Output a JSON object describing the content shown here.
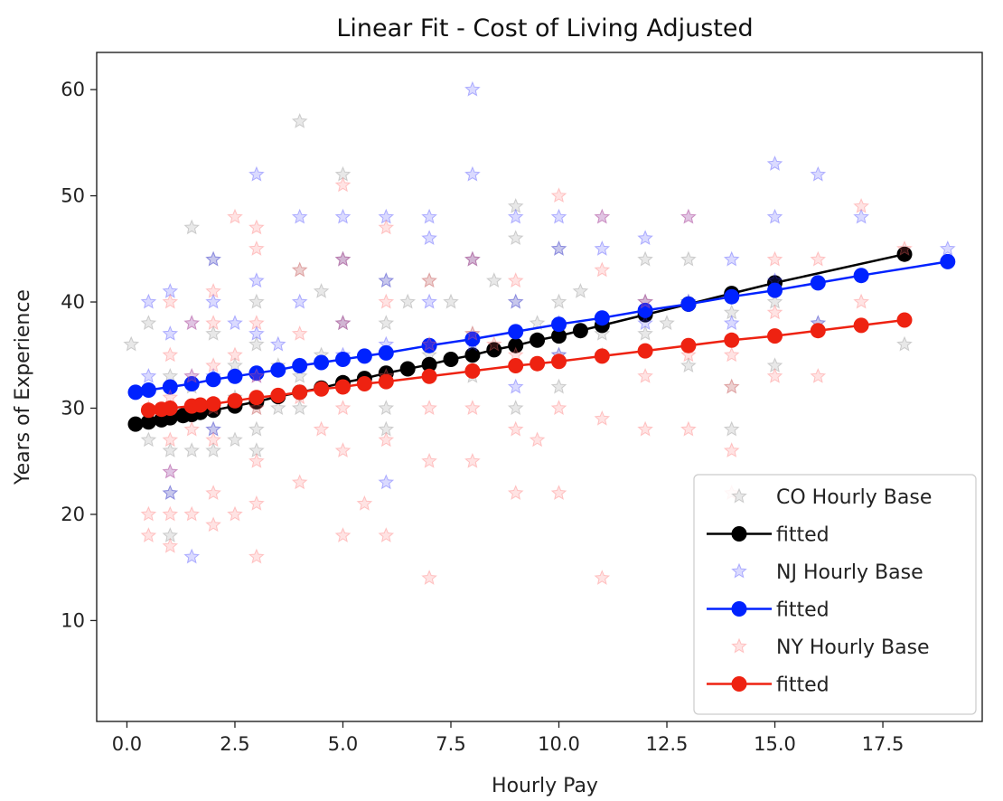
{
  "chart_data": {
    "type": "scatter",
    "title": "Linear Fit - Cost of Living Adjusted",
    "xlabel": "Hourly Pay",
    "ylabel": "Years of Experience",
    "xlim": [
      -0.7,
      19.8
    ],
    "ylim": [
      0.5,
      63.5
    ],
    "xticks": [
      "0.0",
      "2.5",
      "5.0",
      "7.5",
      "10.0",
      "12.5",
      "15.0",
      "17.5"
    ],
    "xtick_values": [
      0,
      2.5,
      5,
      7.5,
      10,
      12.5,
      15,
      17.5
    ],
    "yticks": [
      "10",
      "20",
      "30",
      "40",
      "50",
      "60"
    ],
    "ytick_values": [
      10,
      20,
      30,
      40,
      50,
      60
    ],
    "grid": false,
    "legend_position": "lower-right",
    "series": [
      {
        "name": "CO Hourly Base",
        "kind": "scatter",
        "marker": "star",
        "color": "#808080",
        "x": [
          0.1,
          0.5,
          0.5,
          1,
          1,
          1,
          1,
          1,
          1,
          1.5,
          1.5,
          1.5,
          2,
          2,
          2,
          2,
          2,
          2.5,
          2.5,
          2.5,
          3,
          3,
          3,
          3,
          3,
          3.5,
          3.5,
          4,
          4,
          4,
          4,
          4.5,
          4.5,
          5,
          5,
          5,
          5,
          6,
          6,
          6,
          6,
          6.5,
          7,
          7,
          7,
          7.5,
          8,
          8,
          8,
          8.5,
          9,
          9,
          9,
          9,
          9.5,
          10,
          10,
          10,
          10,
          10.5,
          11,
          11,
          12,
          12,
          12,
          12.5,
          13,
          13,
          13,
          14,
          14,
          14,
          15,
          15,
          16,
          18
        ],
        "y": [
          36,
          38,
          27,
          26,
          30,
          33,
          22,
          18,
          29,
          47,
          26,
          32,
          44,
          26,
          30,
          37,
          28,
          34,
          27,
          31,
          36,
          30,
          28,
          40,
          26,
          34,
          30,
          57,
          43,
          33,
          30,
          41,
          35,
          52,
          44,
          38,
          32,
          42,
          38,
          30,
          28,
          40,
          42,
          35,
          33,
          40,
          44,
          37,
          33,
          42,
          49,
          46,
          40,
          30,
          38,
          45,
          40,
          35,
          32,
          41,
          37,
          35,
          44,
          40,
          37,
          38,
          44,
          40,
          34,
          39,
          32,
          28,
          40,
          34,
          38,
          36
        ]
      },
      {
        "name": "fitted",
        "kind": "line",
        "marker": "circle",
        "color": "#000000",
        "x": [
          0.2,
          0.5,
          0.8,
          1,
          1.3,
          1.5,
          1.7,
          2,
          2.5,
          3,
          3.5,
          4,
          4.5,
          5,
          5.5,
          6,
          6.5,
          7,
          7.5,
          8,
          8.5,
          9,
          9.5,
          10,
          10.5,
          11,
          12,
          13,
          14,
          15,
          18
        ],
        "y": [
          28.5,
          28.7,
          28.9,
          29.1,
          29.3,
          29.4,
          29.6,
          29.8,
          30.2,
          30.6,
          31.1,
          31.5,
          31.9,
          32.4,
          32.8,
          33.3,
          33.7,
          34.1,
          34.6,
          35,
          35.5,
          35.9,
          36.4,
          36.8,
          37.3,
          37.8,
          38.8,
          39.8,
          40.8,
          41.8,
          44.5
        ]
      },
      {
        "name": "NJ Hourly Base",
        "kind": "scatter",
        "marker": "star",
        "color": "#3333ff",
        "x": [
          0.5,
          0.5,
          1,
          1,
          1,
          1,
          1,
          1.5,
          1.5,
          1.5,
          2,
          2,
          2,
          2,
          2.5,
          3,
          3,
          3,
          3,
          3.5,
          4,
          4,
          4,
          5,
          5,
          5,
          5,
          6,
          6,
          6,
          6,
          7,
          7,
          7,
          8,
          8,
          8,
          8,
          9,
          9,
          9,
          10,
          10,
          10,
          10,
          11,
          11,
          12,
          12,
          12,
          13,
          13,
          14,
          14,
          15,
          15,
          15,
          16,
          16,
          17,
          19
        ],
        "y": [
          40,
          33,
          41,
          37,
          30,
          24,
          22,
          38,
          33,
          16,
          44,
          40,
          33,
          28,
          38,
          52,
          42,
          37,
          33,
          36,
          48,
          40,
          34,
          48,
          44,
          38,
          35,
          48,
          42,
          36,
          23,
          48,
          46,
          40,
          60,
          52,
          44,
          36,
          48,
          40,
          32,
          48,
          45,
          38,
          35,
          48,
          45,
          46,
          40,
          38,
          48,
          40,
          44,
          38,
          53,
          48,
          42,
          52,
          38,
          48,
          45
        ]
      },
      {
        "name": "fitted",
        "kind": "line",
        "marker": "circle",
        "color": "#0022ff",
        "x": [
          0.2,
          0.5,
          1,
          1.5,
          2,
          2.5,
          3,
          3.5,
          4,
          4.5,
          5,
          5.5,
          6,
          7,
          8,
          9,
          10,
          11,
          12,
          13,
          14,
          15,
          16,
          17,
          19
        ],
        "y": [
          31.5,
          31.7,
          32,
          32.3,
          32.7,
          33,
          33.3,
          33.6,
          34,
          34.3,
          34.6,
          34.9,
          35.2,
          35.9,
          36.5,
          37.2,
          37.9,
          38.5,
          39.2,
          39.8,
          40.5,
          41.1,
          41.8,
          42.5,
          43.8
        ]
      },
      {
        "name": "NY Hourly Base",
        "kind": "scatter",
        "marker": "star",
        "color": "#ff6666",
        "x": [
          0.5,
          0.5,
          0.5,
          1,
          1,
          1,
          1,
          1,
          1,
          1,
          1.5,
          1.5,
          1.5,
          1.5,
          2,
          2,
          2,
          2,
          2,
          2,
          2,
          2.5,
          2.5,
          2.5,
          3,
          3,
          3,
          3,
          3,
          3,
          3,
          3,
          4,
          4,
          4,
          4,
          4.5,
          5,
          5,
          5,
          5,
          5,
          5,
          5.5,
          6,
          6,
          6,
          6,
          6,
          7,
          7,
          7,
          7,
          7,
          8,
          8,
          8,
          8,
          8.5,
          9,
          9,
          9,
          9,
          9.5,
          10,
          10,
          10,
          11,
          11,
          11,
          11,
          12,
          12,
          12,
          13,
          13,
          13,
          14,
          14,
          14,
          14,
          15,
          15,
          15,
          16,
          16,
          17,
          17,
          18
        ],
        "y": [
          30,
          20,
          18,
          40,
          35,
          31,
          27,
          24,
          20,
          17,
          38,
          33,
          28,
          20,
          41,
          38,
          34,
          30,
          27,
          22,
          19,
          48,
          35,
          20,
          47,
          45,
          38,
          33,
          30,
          25,
          21,
          16,
          43,
          37,
          31,
          23,
          28,
          51,
          44,
          38,
          30,
          26,
          18,
          21,
          47,
          40,
          33,
          27,
          18,
          42,
          36,
          30,
          25,
          14,
          44,
          37,
          30,
          25,
          36,
          42,
          35,
          28,
          22,
          27,
          50,
          30,
          22,
          48,
          43,
          29,
          14,
          40,
          33,
          28,
          48,
          35,
          28,
          32,
          26,
          22,
          35,
          44,
          39,
          33,
          44,
          33,
          49,
          40,
          45
        ]
      },
      {
        "name": "fitted",
        "kind": "line",
        "marker": "circle",
        "color": "#ee2211",
        "x": [
          0.5,
          0.8,
          1,
          1.5,
          1.7,
          2,
          2.5,
          3,
          3.5,
          4,
          4.5,
          5,
          5.5,
          6,
          7,
          8,
          9,
          9.5,
          10,
          11,
          12,
          13,
          14,
          15,
          16,
          17,
          18
        ],
        "y": [
          29.8,
          29.9,
          30,
          30.2,
          30.3,
          30.4,
          30.7,
          31,
          31.2,
          31.5,
          31.8,
          32,
          32.3,
          32.5,
          33,
          33.5,
          34,
          34.2,
          34.4,
          34.9,
          35.4,
          35.9,
          36.4,
          36.8,
          37.3,
          37.8,
          38.3
        ]
      }
    ]
  }
}
